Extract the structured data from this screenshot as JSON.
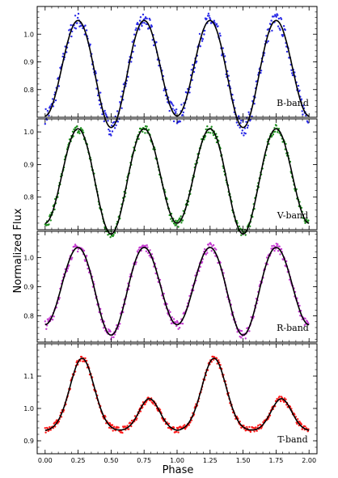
{
  "figure": {
    "ylabel": "Normalized Flux",
    "xlabel": "Phase"
  },
  "chart_data": [
    {
      "type": "scatter",
      "label": "B-band",
      "point_color": "#2a2ae6",
      "model_color": "#000000",
      "xlim": [
        -0.06,
        2.06
      ],
      "ylim": [
        0.7,
        1.1
      ],
      "yticks": [
        0.8,
        0.9,
        1.0
      ],
      "xticks": [
        0,
        0.25,
        0.5,
        0.75,
        1.0,
        1.25,
        1.5,
        1.75,
        2.0
      ],
      "model": {
        "base": 0.705,
        "p1": 0.345,
        "p2": 0.345,
        "dip": 0.07
      },
      "noise": 0.018
    },
    {
      "type": "scatter",
      "label": "V-band",
      "point_color": "#1f8f1f",
      "model_color": "#000000",
      "xlim": [
        -0.06,
        2.06
      ],
      "ylim": [
        0.7,
        1.04
      ],
      "yticks": [
        0.8,
        0.9,
        1.0
      ],
      "xticks": [
        0,
        0.25,
        0.5,
        0.75,
        1.0,
        1.25,
        1.5,
        1.75,
        2.0
      ],
      "model": {
        "base": 0.72,
        "p1": 0.29,
        "p2": 0.29,
        "dip": 0.055
      },
      "noise": 0.008
    },
    {
      "type": "scatter",
      "label": "R-band",
      "point_color": "#c43ad0",
      "model_color": "#000000",
      "xlim": [
        -0.06,
        2.06
      ],
      "ylim": [
        0.71,
        1.09
      ],
      "yticks": [
        0.8,
        0.9,
        1.0
      ],
      "xticks": [
        0,
        0.25,
        0.5,
        0.75,
        1.0,
        1.25,
        1.5,
        1.75,
        2.0
      ],
      "model": {
        "base": 0.77,
        "p1": 0.265,
        "p2": 0.265,
        "dip": 0.06
      },
      "noise": 0.01
    },
    {
      "type": "scatter",
      "label": "T-band",
      "point_color": "#ff1a1a",
      "model_color": "#000000",
      "xlim": [
        -0.06,
        2.06
      ],
      "ylim": [
        0.86,
        1.2
      ],
      "yticks": [
        0.9,
        1.0,
        1.1
      ],
      "xticks": [
        0,
        0.25,
        0.5,
        0.75,
        1.0,
        1.25,
        1.5,
        1.75,
        2.0
      ],
      "xticklabels": [
        "0.00",
        "0.25",
        "0.50",
        "0.75",
        "1.00",
        "1.25",
        "1.50",
        "1.75",
        "2.00"
      ],
      "model": {
        "type": "tess",
        "base": 0.93,
        "p1": 0.225,
        "p2": 0.1,
        "min2": 0.945
      },
      "noise": 0.006
    }
  ]
}
